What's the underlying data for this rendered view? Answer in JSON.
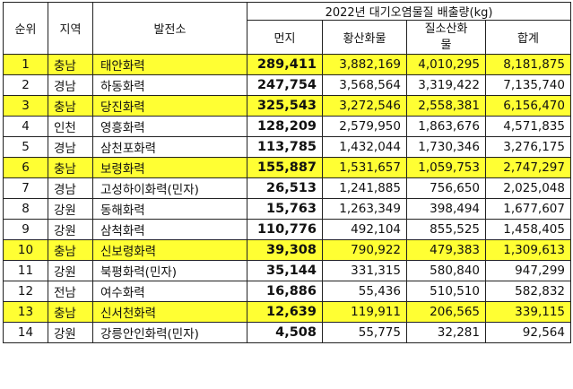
{
  "header": {
    "rank": "순위",
    "region": "지역",
    "plant": "발전소",
    "group_title": "2022년 대기오염물질 배출량(kg)",
    "dust": "먼지",
    "sox": "황산화물",
    "nox_line1": "질소산화",
    "nox_line2": "물",
    "total": "합계"
  },
  "highlight_color": "#ffff33",
  "rows": [
    {
      "rank": "1",
      "region": "충남",
      "plant": "태안화력",
      "dust": "289,411",
      "sox": "3,882,169",
      "nox": "4,010,295",
      "total": "8,181,875",
      "highlight": true
    },
    {
      "rank": "2",
      "region": "경남",
      "plant": "하동화력",
      "dust": "247,754",
      "sox": "3,568,564",
      "nox": "3,319,422",
      "total": "7,135,740",
      "highlight": false
    },
    {
      "rank": "3",
      "region": "충남",
      "plant": "당진화력",
      "dust": "325,543",
      "sox": "3,272,546",
      "nox": "2,558,381",
      "total": "6,156,470",
      "highlight": true
    },
    {
      "rank": "4",
      "region": "인천",
      "plant": "영흥화력",
      "dust": "128,209",
      "sox": "2,579,950",
      "nox": "1,863,676",
      "total": "4,571,835",
      "highlight": false
    },
    {
      "rank": "5",
      "region": "경남",
      "plant": "삼천포화력",
      "dust": "113,785",
      "sox": "1,432,044",
      "nox": "1,730,346",
      "total": "3,276,175",
      "highlight": false
    },
    {
      "rank": "6",
      "region": "충남",
      "plant": "보령화력",
      "dust": "155,887",
      "sox": "1,531,657",
      "nox": "1,059,753",
      "total": "2,747,297",
      "highlight": true
    },
    {
      "rank": "7",
      "region": "경남",
      "plant": "고성하이화력(민자)",
      "dust": "26,513",
      "sox": "1,241,885",
      "nox": "756,650",
      "total": "2,025,048",
      "highlight": false
    },
    {
      "rank": "8",
      "region": "강원",
      "plant": "동해화력",
      "dust": "15,763",
      "sox": "1,263,349",
      "nox": "398,494",
      "total": "1,677,607",
      "highlight": false
    },
    {
      "rank": "9",
      "region": "강원",
      "plant": "삼척화력",
      "dust": "110,776",
      "sox": "492,104",
      "nox": "855,525",
      "total": "1,458,405",
      "highlight": false
    },
    {
      "rank": "10",
      "region": "충남",
      "plant": "신보령화력",
      "dust": "39,308",
      "sox": "790,922",
      "nox": "479,383",
      "total": "1,309,613",
      "highlight": true
    },
    {
      "rank": "11",
      "region": "강원",
      "plant": "북평화력(민자)",
      "dust": "35,144",
      "sox": "331,315",
      "nox": "580,840",
      "total": "947,299",
      "highlight": false
    },
    {
      "rank": "12",
      "region": "전남",
      "plant": "여수화력",
      "dust": "16,886",
      "sox": "55,436",
      "nox": "510,510",
      "total": "582,832",
      "highlight": false
    },
    {
      "rank": "13",
      "region": "충남",
      "plant": "신서천화력",
      "dust": "12,639",
      "sox": "119,911",
      "nox": "206,565",
      "total": "339,115",
      "highlight": true
    },
    {
      "rank": "14",
      "region": "강원",
      "plant": "강릉안인화력(민자)",
      "dust": "4,508",
      "sox": "55,775",
      "nox": "32,281",
      "total": "92,564",
      "highlight": false
    }
  ]
}
